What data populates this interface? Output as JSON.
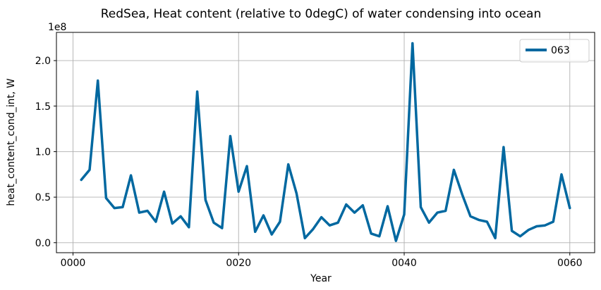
{
  "chart_data": {
    "type": "line",
    "title": "RedSea, Heat content (relative to 0degC) of water condensing into ocean",
    "xlabel": "Year",
    "ylabel": "heat_content_cond_int, W",
    "y_multiplier_label": "1e8",
    "xlim": [
      -2.0,
      63.0
    ],
    "ylim": [
      -11000000.0,
      231000000.0
    ],
    "x_ticks": [
      0,
      20,
      40,
      60
    ],
    "x_tick_labels": [
      "0000",
      "0020",
      "0040",
      "0060"
    ],
    "y_ticks": [
      0,
      50000000.0,
      100000000.0,
      150000000.0,
      200000000.0
    ],
    "y_tick_labels": [
      "0.0",
      "0.5",
      "1.0",
      "1.5",
      "2.0"
    ],
    "grid": true,
    "legend_position": "top-right",
    "series": [
      {
        "name": "063",
        "color": "#0068a0",
        "x": [
          1,
          2,
          3,
          4,
          5,
          6,
          7,
          8,
          9,
          10,
          11,
          12,
          13,
          14,
          15,
          16,
          17,
          18,
          19,
          20,
          21,
          22,
          23,
          24,
          25,
          26,
          27,
          28,
          29,
          30,
          31,
          32,
          33,
          34,
          35,
          36,
          37,
          38,
          39,
          40,
          41,
          42,
          43,
          44,
          45,
          46,
          47,
          48,
          49,
          50,
          51,
          52,
          53,
          54,
          55,
          56,
          57,
          58,
          59,
          60
        ],
        "y": [
          69000000,
          80000000,
          178000000,
          49000000,
          38000000,
          39000000,
          74000000,
          33000000,
          35000000,
          23000000,
          56000000,
          21000000,
          29000000,
          17000000,
          166000000,
          47000000,
          22000000,
          16000000,
          117000000,
          56000000,
          84000000,
          12000000,
          30000000,
          9000000,
          23000000,
          86000000,
          54000000,
          5000000,
          15000000,
          28000000,
          19000000,
          22000000,
          42000000,
          33000000,
          41000000,
          10000000,
          7000000,
          40000000,
          2000000,
          31000000,
          219000000,
          39000000,
          22000000,
          33000000,
          35000000,
          80000000,
          53000000,
          29000000,
          25000000,
          23000000,
          5000000,
          105000000,
          13000000,
          7000000,
          14000000,
          18000000,
          19000000,
          23000000,
          75000000,
          38000000
        ]
      }
    ]
  }
}
